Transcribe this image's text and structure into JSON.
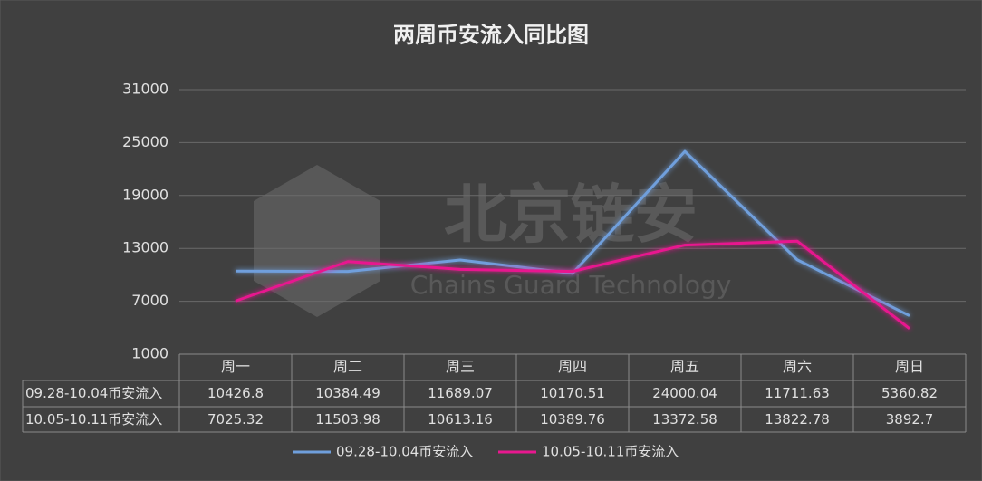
{
  "chart_data": {
    "type": "line",
    "title": "两周币安流入同比图",
    "watermark": {
      "text": "北京链安",
      "subtext": "Chains Guard Technology"
    },
    "categories": [
      "周一",
      "周二",
      "周三",
      "周四",
      "周五",
      "周六",
      "周日"
    ],
    "series": [
      {
        "name": "09.28-10.04币安流入",
        "color": "#6f9fdc",
        "values": [
          10426.8,
          10384.49,
          11689.07,
          10170.51,
          24000.04,
          11711.63,
          5360.82
        ]
      },
      {
        "name": "10.05-10.11币安流入",
        "color": "#e8188f",
        "values": [
          7025.32,
          11503.98,
          10613.16,
          10389.76,
          13372.58,
          13822.78,
          3892.7
        ]
      }
    ],
    "ylim": [
      1000,
      31000
    ],
    "yticks": [
      1000,
      7000,
      13000,
      19000,
      25000,
      31000
    ],
    "grid": true,
    "legend": "bottom"
  }
}
